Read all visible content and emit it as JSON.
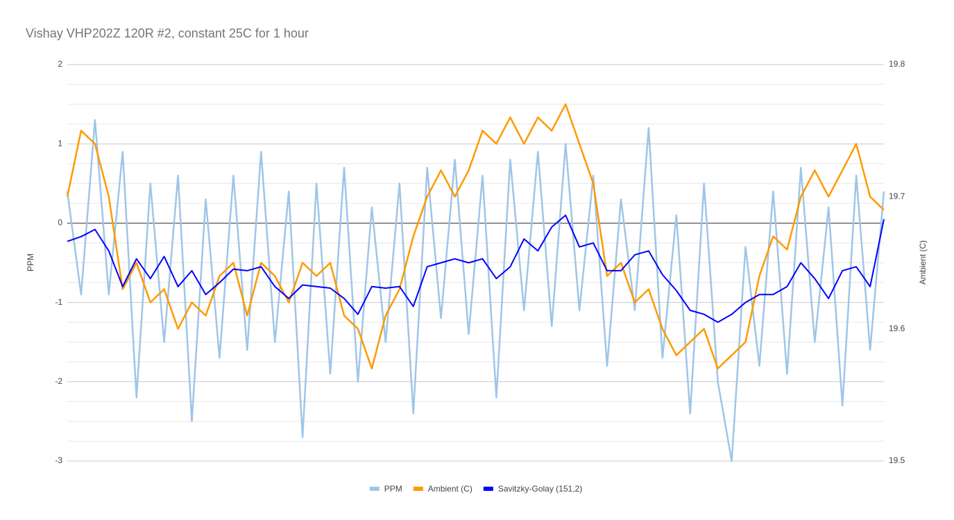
{
  "chart_data": {
    "type": "line",
    "title": "Vishay VHP202Z 120R #2, constant 25C for 1 hour",
    "y_label": "PPM",
    "y2_label": "Ambient (C)",
    "ylim": [
      -3,
      2
    ],
    "yticks": [
      -3,
      -2,
      -1,
      0,
      1,
      2
    ],
    "minor_gridlines": [
      -2.75,
      -2.5,
      -2.25,
      -1.75,
      -1.5,
      -1.25,
      -0.75,
      -0.5,
      -0.25,
      0.25,
      0.5,
      0.75,
      1.25,
      1.5,
      1.75
    ],
    "y2lim": [
      19.5,
      19.8
    ],
    "y2ticks": [
      19.5,
      19.6,
      19.7,
      19.8
    ],
    "grid": true,
    "zero_line": true,
    "legend": "bottom",
    "categories": [
      null,
      null,
      null,
      null,
      null,
      null,
      null,
      null,
      null,
      null,
      null,
      null,
      null,
      null,
      null,
      null,
      null,
      null,
      null,
      null,
      null,
      null,
      null,
      null,
      null,
      null,
      null,
      null,
      null,
      null,
      null,
      null,
      null,
      null,
      null,
      null,
      null,
      null,
      null,
      null,
      null,
      null,
      null,
      null,
      null,
      null,
      null,
      null,
      null,
      null,
      null,
      null,
      null,
      null,
      null,
      null,
      null,
      null,
      null,
      null
    ],
    "series": [
      {
        "name": "PPM",
        "color": "#9fc5e8",
        "width": 2.5,
        "values": [
          0.4,
          -0.9,
          1.3,
          -0.9,
          0.9,
          -2.2,
          0.5,
          -1.5,
          0.6,
          -2.5,
          0.3,
          -1.7,
          0.6,
          -1.6,
          0.9,
          -1.5,
          0.4,
          -2.7,
          0.5,
          -1.9,
          0.7,
          -2.0,
          0.2,
          -1.5,
          0.5,
          -2.4,
          0.7,
          -1.2,
          0.8,
          -1.4,
          0.6,
          -2.2,
          0.8,
          -1.1,
          0.9,
          -1.3,
          1.0,
          -1.1,
          0.6,
          -1.8,
          0.3,
          -1.1,
          1.2,
          -1.7,
          0.1,
          -2.4,
          0.5,
          -2.0,
          -3.0,
          -0.3,
          -1.8,
          0.4,
          -1.9,
          0.7,
          -1.5,
          0.2,
          -2.3,
          0.6,
          -1.6,
          0.4
        ]
      },
      {
        "name": "Ambient (C)",
        "color": "#ff9900",
        "width": 2.5,
        "axis": "y2",
        "values": [
          19.7,
          19.75,
          19.74,
          19.7,
          19.63,
          19.65,
          19.62,
          19.63,
          19.6,
          19.62,
          19.61,
          19.64,
          19.65,
          19.61,
          19.65,
          19.64,
          19.62,
          19.65,
          19.64,
          19.65,
          19.61,
          19.6,
          19.57,
          19.61,
          19.63,
          19.67,
          19.7,
          19.72,
          19.7,
          19.72,
          19.75,
          19.74,
          19.76,
          19.74,
          19.76,
          19.75,
          19.77,
          19.74,
          19.71,
          19.64,
          19.65,
          19.62,
          19.63,
          19.6,
          19.58,
          19.59,
          19.6,
          19.57,
          19.58,
          19.59,
          19.64,
          19.67,
          19.66,
          19.7,
          19.72,
          19.7,
          19.72,
          19.74,
          19.7,
          19.69
        ]
      },
      {
        "name": "Savitzky-Golay (151,2)",
        "color": "#0000ff",
        "width": 2,
        "values": [
          -0.23,
          -0.17,
          -0.08,
          -0.35,
          -0.8,
          -0.45,
          -0.7,
          -0.42,
          -0.8,
          -0.6,
          -0.9,
          -0.75,
          -0.58,
          -0.6,
          -0.55,
          -0.8,
          -0.95,
          -0.78,
          -0.8,
          -0.82,
          -0.95,
          -1.15,
          -0.8,
          -0.82,
          -0.8,
          -1.05,
          -0.55,
          -0.5,
          -0.45,
          -0.5,
          -0.45,
          -0.7,
          -0.55,
          -0.2,
          -0.35,
          -0.05,
          0.1,
          -0.3,
          -0.25,
          -0.6,
          -0.6,
          -0.4,
          -0.35,
          -0.65,
          -0.85,
          -1.1,
          -1.15,
          -1.25,
          -1.15,
          -1.0,
          -0.9,
          -0.9,
          -0.8,
          -0.5,
          -0.7,
          -0.95,
          -0.6,
          -0.55,
          -0.8,
          0.05
        ]
      }
    ]
  }
}
